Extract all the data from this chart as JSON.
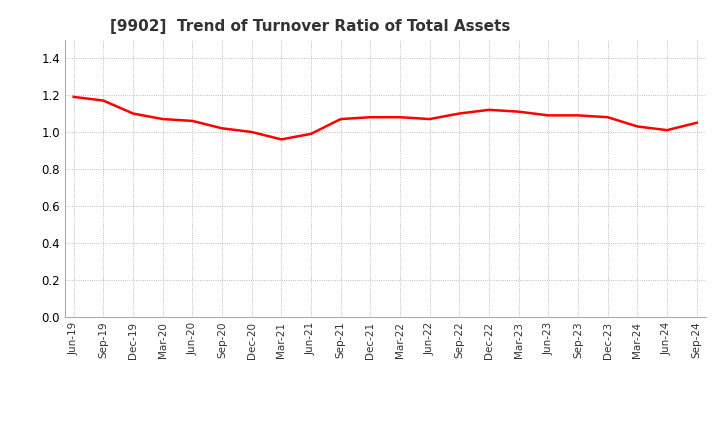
{
  "title": "[9902]  Trend of Turnover Ratio of Total Assets",
  "title_fontsize": 11,
  "line_color": "#FF0000",
  "line_width": 1.8,
  "background_color": "#FFFFFF",
  "grid_color": "#AAAAAA",
  "ylim": [
    0.0,
    1.5
  ],
  "yticks": [
    0.0,
    0.2,
    0.4,
    0.6,
    0.8,
    1.0,
    1.2,
    1.4
  ],
  "x_labels": [
    "Jun-19",
    "Sep-19",
    "Dec-19",
    "Mar-20",
    "Jun-20",
    "Sep-20",
    "Dec-20",
    "Mar-21",
    "Jun-21",
    "Sep-21",
    "Dec-21",
    "Mar-22",
    "Jun-22",
    "Sep-22",
    "Dec-22",
    "Mar-23",
    "Jun-23",
    "Sep-23",
    "Dec-23",
    "Mar-24",
    "Jun-24",
    "Sep-24"
  ],
  "values": [
    1.19,
    1.17,
    1.1,
    1.07,
    1.06,
    1.02,
    1.0,
    0.96,
    0.99,
    1.07,
    1.08,
    1.08,
    1.07,
    1.1,
    1.12,
    1.11,
    1.09,
    1.09,
    1.08,
    1.03,
    1.01,
    1.05
  ]
}
